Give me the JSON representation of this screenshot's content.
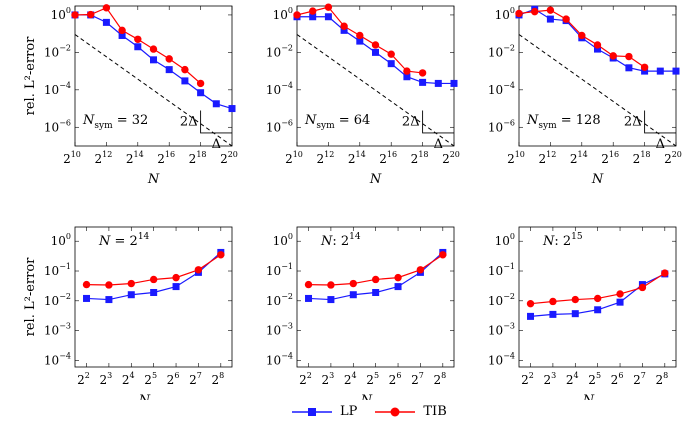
{
  "legend": [
    {
      "name": "LP",
      "color": "#1a1aff",
      "marker": "square"
    },
    {
      "name": "TIB",
      "color": "#ff0000",
      "marker": "circle"
    }
  ],
  "chart_data": [
    {
      "type": "line",
      "panel": "top-left",
      "xlabel": "N",
      "ylabel": "rel. L²-error",
      "x_scale": "log2",
      "y_scale": "log10",
      "xlim": [
        1024,
        1048576
      ],
      "ylim": [
        1e-07,
        3
      ],
      "x_ticks": [
        {
          "base": "2",
          "exp": "10",
          "value": 1024
        },
        {
          "base": "2",
          "exp": "12",
          "value": 4096
        },
        {
          "base": "2",
          "exp": "14",
          "value": 16384
        },
        {
          "base": "2",
          "exp": "16",
          "value": 65536
        },
        {
          "base": "2",
          "exp": "18",
          "value": 262144
        },
        {
          "base": "2",
          "exp": "20",
          "value": 1048576
        }
      ],
      "y_ticks": [
        {
          "base": "10",
          "exp": "0",
          "value": 1
        },
        {
          "base": "10",
          "exp": "−2",
          "value": 0.01
        },
        {
          "base": "10",
          "exp": "−4",
          "value": 0.0001
        },
        {
          "base": "10",
          "exp": "−6",
          "value": 1e-06
        }
      ],
      "annotation": {
        "sym": "N",
        "sub": "sym",
        "rest": " = 32"
      },
      "slope": {
        "vertical_label": "2Δ",
        "horizontal_label": "Δ",
        "x_start": 262144,
        "x_end": 1048576,
        "y_start": 7.9e-06,
        "y_end": 5e-07
      },
      "reference_line": {
        "x": [
          1024,
          1048576
        ],
        "y": [
          0.09,
          1e-07
        ]
      },
      "series": [
        {
          "name": "LP",
          "x": [
            1024,
            2048,
            4096,
            8192,
            16384,
            32768,
            65536,
            131072,
            262144,
            524288,
            1048576
          ],
          "y": [
            1,
            1,
            0.4,
            0.08,
            0.02,
            0.004,
            0.0012,
            0.0003,
            7e-05,
            1.8e-05,
            1e-05
          ]
        },
        {
          "name": "TIB",
          "x": [
            1024,
            2048,
            4096,
            8192,
            16384,
            32768,
            65536,
            131072,
            262144
          ],
          "y": [
            1,
            1.05,
            2.4,
            0.15,
            0.05,
            0.015,
            0.0045,
            0.0012,
            0.00022
          ]
        }
      ]
    },
    {
      "type": "line",
      "panel": "top-middle",
      "xlabel": "N",
      "ylabel": "",
      "x_scale": "log2",
      "y_scale": "log10",
      "xlim": [
        1024,
        1048576
      ],
      "ylim": [
        1e-07,
        3
      ],
      "x_ticks": [
        {
          "base": "2",
          "exp": "10",
          "value": 1024
        },
        {
          "base": "2",
          "exp": "12",
          "value": 4096
        },
        {
          "base": "2",
          "exp": "14",
          "value": 16384
        },
        {
          "base": "2",
          "exp": "16",
          "value": 65536
        },
        {
          "base": "2",
          "exp": "18",
          "value": 262144
        },
        {
          "base": "2",
          "exp": "20",
          "value": 1048576
        }
      ],
      "y_ticks": [
        {
          "base": "10",
          "exp": "0",
          "value": 1
        },
        {
          "base": "10",
          "exp": "−2",
          "value": 0.01
        },
        {
          "base": "10",
          "exp": "−4",
          "value": 0.0001
        },
        {
          "base": "10",
          "exp": "−6",
          "value": 1e-06
        }
      ],
      "annotation": {
        "sym": "N",
        "sub": "sym",
        "rest": " = 64"
      },
      "slope": {
        "vertical_label": "2Δ",
        "horizontal_label": "Δ",
        "x_start": 262144,
        "x_end": 1048576,
        "y_start": 7.9e-06,
        "y_end": 5e-07
      },
      "reference_line": {
        "x": [
          1024,
          1048576
        ],
        "y": [
          0.09,
          1e-07
        ]
      },
      "series": [
        {
          "name": "LP",
          "x": [
            1024,
            2048,
            4096,
            8192,
            16384,
            32768,
            65536,
            131072,
            262144,
            524288,
            1048576
          ],
          "y": [
            0.8,
            0.8,
            0.8,
            0.15,
            0.04,
            0.01,
            0.0025,
            0.0005,
            0.00025,
            0.00022,
            0.00022
          ]
        },
        {
          "name": "TIB",
          "x": [
            1024,
            2048,
            4096,
            8192,
            16384,
            32768,
            65536,
            131072,
            262144
          ],
          "y": [
            1,
            1.6,
            2.6,
            0.25,
            0.08,
            0.025,
            0.008,
            0.001,
            0.0008
          ]
        }
      ]
    },
    {
      "type": "line",
      "panel": "top-right",
      "xlabel": "N",
      "ylabel": "",
      "x_scale": "log2",
      "y_scale": "log10",
      "xlim": [
        1024,
        1048576
      ],
      "ylim": [
        1e-07,
        3
      ],
      "x_ticks": [
        {
          "base": "2",
          "exp": "10",
          "value": 1024
        },
        {
          "base": "2",
          "exp": "12",
          "value": 4096
        },
        {
          "base": "2",
          "exp": "14",
          "value": 16384
        },
        {
          "base": "2",
          "exp": "16",
          "value": 65536
        },
        {
          "base": "2",
          "exp": "18",
          "value": 262144
        },
        {
          "base": "2",
          "exp": "20",
          "value": 1048576
        }
      ],
      "y_ticks": [
        {
          "base": "10",
          "exp": "0",
          "value": 1
        },
        {
          "base": "10",
          "exp": "−2",
          "value": 0.01
        },
        {
          "base": "10",
          "exp": "−4",
          "value": 0.0001
        },
        {
          "base": "10",
          "exp": "−6",
          "value": 1e-06
        }
      ],
      "annotation": {
        "sym": "N",
        "sub": "sym",
        "rest": " = 128"
      },
      "slope": {
        "vertical_label": "2Δ",
        "horizontal_label": "Δ",
        "x_start": 262144,
        "x_end": 1048576,
        "y_start": 7.9e-06,
        "y_end": 5e-07
      },
      "reference_line": {
        "x": [
          1024,
          1048576
        ],
        "y": [
          0.09,
          1e-07
        ]
      },
      "series": [
        {
          "name": "LP",
          "x": [
            1024,
            2048,
            4096,
            8192,
            16384,
            32768,
            65536,
            131072,
            262144,
            524288,
            1048576
          ],
          "y": [
            1,
            2,
            0.6,
            0.5,
            0.06,
            0.015,
            0.005,
            0.0015,
            0.001,
            0.001,
            0.001
          ]
        },
        {
          "name": "TIB",
          "x": [
            1024,
            2048,
            4096,
            8192,
            16384,
            32768,
            65536,
            131072,
            262144
          ],
          "y": [
            1.2,
            1.5,
            1.8,
            0.6,
            0.08,
            0.025,
            0.0065,
            0.006,
            0.0016
          ]
        }
      ]
    },
    {
      "type": "line",
      "panel": "bottom-left",
      "xlabel": "N_sym",
      "ylabel": "rel. L²-error",
      "x_scale": "log2",
      "y_scale": "log10",
      "xlim": [
        2.8,
        362
      ],
      "ylim": [
        6e-05,
        3
      ],
      "x_ticks": [
        {
          "base": "2",
          "exp": "2",
          "value": 4
        },
        {
          "base": "2",
          "exp": "3",
          "value": 8
        },
        {
          "base": "2",
          "exp": "4",
          "value": 16
        },
        {
          "base": "2",
          "exp": "5",
          "value": 32
        },
        {
          "base": "2",
          "exp": "6",
          "value": 64
        },
        {
          "base": "2",
          "exp": "7",
          "value": 128
        },
        {
          "base": "2",
          "exp": "8",
          "value": 256
        }
      ],
      "y_ticks": [
        {
          "base": "10",
          "exp": "0",
          "value": 1
        },
        {
          "base": "10",
          "exp": "−1",
          "value": 0.1
        },
        {
          "base": "10",
          "exp": "−2",
          "value": 0.01
        },
        {
          "base": "10",
          "exp": "−3",
          "value": 0.001
        },
        {
          "base": "10",
          "exp": "−4",
          "value": 0.0001
        }
      ],
      "annotation": {
        "sym": "N",
        "sub": "",
        "rest": " = 2",
        "sup": "14"
      },
      "series": [
        {
          "name": "LP",
          "x": [
            4,
            8,
            16,
            32,
            64,
            128,
            256
          ],
          "y": [
            0.012,
            0.011,
            0.016,
            0.019,
            0.03,
            0.09,
            0.42
          ]
        },
        {
          "name": "TIB",
          "x": [
            4,
            8,
            16,
            32,
            64,
            128,
            256
          ],
          "y": [
            0.035,
            0.034,
            0.038,
            0.052,
            0.06,
            0.11,
            0.35
          ]
        }
      ]
    },
    {
      "type": "line",
      "panel": "bottom-middle",
      "xlabel": "N_sym",
      "ylabel": "",
      "x_scale": "log2",
      "y_scale": "log10",
      "xlim": [
        2.8,
        362
      ],
      "ylim": [
        6e-05,
        3
      ],
      "x_ticks": [
        {
          "base": "2",
          "exp": "2",
          "value": 4
        },
        {
          "base": "2",
          "exp": "3",
          "value": 8
        },
        {
          "base": "2",
          "exp": "4",
          "value": 16
        },
        {
          "base": "2",
          "exp": "5",
          "value": 32
        },
        {
          "base": "2",
          "exp": "6",
          "value": 64
        },
        {
          "base": "2",
          "exp": "7",
          "value": 128
        },
        {
          "base": "2",
          "exp": "8",
          "value": 256
        }
      ],
      "y_ticks": [
        {
          "base": "10",
          "exp": "0",
          "value": 1
        },
        {
          "base": "10",
          "exp": "−1",
          "value": 0.1
        },
        {
          "base": "10",
          "exp": "−2",
          "value": 0.01
        },
        {
          "base": "10",
          "exp": "−3",
          "value": 0.001
        },
        {
          "base": "10",
          "exp": "−4",
          "value": 0.0001
        }
      ],
      "annotation": {
        "sym": "N",
        "sub": "",
        "rest": ": 2",
        "sup": "14"
      },
      "series": [
        {
          "name": "LP",
          "x": [
            4,
            8,
            16,
            32,
            64,
            128,
            256
          ],
          "y": [
            0.012,
            0.011,
            0.016,
            0.019,
            0.03,
            0.09,
            0.42
          ]
        },
        {
          "name": "TIB",
          "x": [
            4,
            8,
            16,
            32,
            64,
            128,
            256
          ],
          "y": [
            0.035,
            0.034,
            0.038,
            0.052,
            0.06,
            0.11,
            0.35
          ]
        }
      ]
    },
    {
      "type": "line",
      "panel": "bottom-right",
      "xlabel": "N_sym",
      "ylabel": "",
      "x_scale": "log2",
      "y_scale": "log10",
      "xlim": [
        2.8,
        362
      ],
      "ylim": [
        6e-05,
        3
      ],
      "x_ticks": [
        {
          "base": "2",
          "exp": "2",
          "value": 4
        },
        {
          "base": "2",
          "exp": "3",
          "value": 8
        },
        {
          "base": "2",
          "exp": "4",
          "value": 16
        },
        {
          "base": "2",
          "exp": "5",
          "value": 32
        },
        {
          "base": "2",
          "exp": "6",
          "value": 64
        },
        {
          "base": "2",
          "exp": "7",
          "value": 128
        },
        {
          "base": "2",
          "exp": "8",
          "value": 256
        }
      ],
      "y_ticks": [
        {
          "base": "10",
          "exp": "0",
          "value": 1
        },
        {
          "base": "10",
          "exp": "−1",
          "value": 0.1
        },
        {
          "base": "10",
          "exp": "−2",
          "value": 0.01
        },
        {
          "base": "10",
          "exp": "−3",
          "value": 0.001
        },
        {
          "base": "10",
          "exp": "−4",
          "value": 0.0001
        }
      ],
      "annotation": {
        "sym": "N",
        "sub": "",
        "rest": ": 2",
        "sup": "15"
      },
      "series": [
        {
          "name": "LP",
          "x": [
            4,
            8,
            16,
            32,
            64,
            128,
            256
          ],
          "y": [
            0.003,
            0.0035,
            0.0037,
            0.005,
            0.009,
            0.035,
            0.08
          ]
        },
        {
          "name": "TIB",
          "x": [
            4,
            8,
            16,
            32,
            64,
            128,
            256
          ],
          "y": [
            0.008,
            0.0095,
            0.011,
            0.012,
            0.017,
            0.028,
            0.085
          ]
        }
      ]
    }
  ]
}
